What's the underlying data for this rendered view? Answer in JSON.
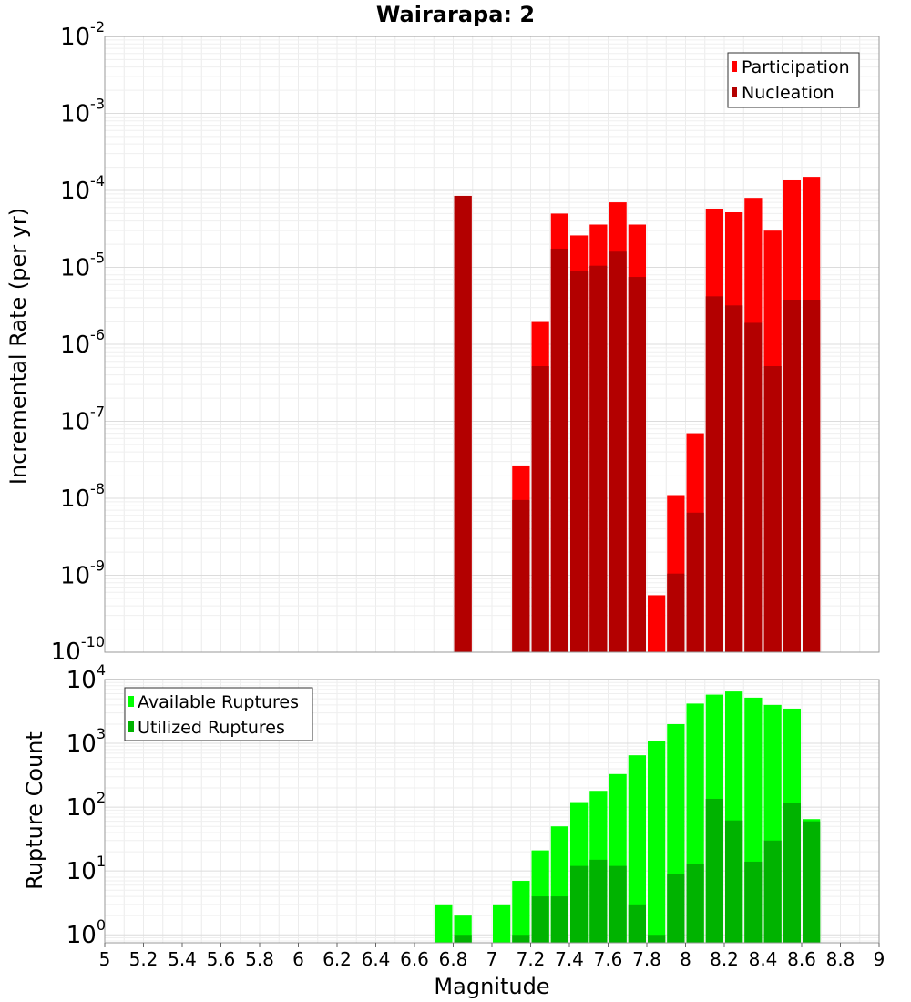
{
  "chart_data": [
    {
      "type": "bar",
      "title": "Wairarapa: 2",
      "ylabel": "Incremental Rate (per yr)",
      "yscale": "log",
      "ylim": [
        1e-10,
        0.01
      ],
      "xlim": [
        5,
        9
      ],
      "bar_width": 0.1,
      "legend_position": "top-right",
      "colors": {
        "participation": "#ff0000",
        "nucleation": "#b30000"
      },
      "x": [
        6.85,
        7.15,
        7.25,
        7.35,
        7.45,
        7.55,
        7.65,
        7.75,
        7.85,
        7.95,
        8.05,
        8.15,
        8.25,
        8.35,
        8.45,
        8.55,
        8.65
      ],
      "series": [
        {
          "name": "Participation",
          "values": [
            8.5e-05,
            2.6e-08,
            2e-06,
            5e-05,
            2.6e-05,
            3.6e-05,
            7e-05,
            3.6e-05,
            5.5e-10,
            1.1e-08,
            7e-08,
            5.8e-05,
            5.2e-05,
            8e-05,
            3e-05,
            0.000135,
            0.00015
          ]
        },
        {
          "name": "Nucleation",
          "values": [
            8.5e-05,
            9.5e-09,
            5.2e-07,
            1.75e-05,
            9e-06,
            1.05e-05,
            1.6e-05,
            7.5e-06,
            null,
            1.05e-09,
            6.5e-09,
            4.2e-06,
            3.2e-06,
            1.9e-06,
            5.2e-07,
            3.8e-06,
            3.8e-06
          ]
        }
      ],
      "yticks": [
        {
          "base": "10",
          "exp": "-10"
        },
        {
          "base": "10",
          "exp": "-9"
        },
        {
          "base": "10",
          "exp": "-8"
        },
        {
          "base": "10",
          "exp": "-7"
        },
        {
          "base": "10",
          "exp": "-6"
        },
        {
          "base": "10",
          "exp": "-5"
        },
        {
          "base": "10",
          "exp": "-4"
        },
        {
          "base": "10",
          "exp": "-3"
        },
        {
          "base": "10",
          "exp": "-2"
        }
      ]
    },
    {
      "type": "bar",
      "xlabel": "Magnitude",
      "ylabel": "Rupture Count",
      "yscale": "log",
      "ylim": [
        0.75,
        10000
      ],
      "xlim": [
        5,
        9
      ],
      "bar_width": 0.1,
      "legend_position": "top-left",
      "colors": {
        "available": "#00ff00",
        "utilized": "#00b300"
      },
      "x": [
        6.75,
        6.85,
        7.05,
        7.15,
        7.25,
        7.35,
        7.45,
        7.55,
        7.65,
        7.75,
        7.85,
        7.95,
        8.05,
        8.15,
        8.25,
        8.35,
        8.45,
        8.55,
        8.65
      ],
      "series": [
        {
          "name": "Available Ruptures",
          "values": [
            3,
            2,
            3,
            7,
            21,
            50,
            120,
            180,
            330,
            650,
            1100,
            2000,
            4200,
            5800,
            6500,
            5200,
            4000,
            3500,
            65
          ]
        },
        {
          "name": "Utilized Ruptures",
          "values": [
            null,
            1,
            null,
            1,
            4,
            4,
            12,
            15,
            12,
            3,
            1,
            9,
            13,
            135,
            62,
            14,
            30,
            115,
            60
          ]
        }
      ],
      "yticks": [
        {
          "value": 1,
          "base": "10",
          "exp": "0"
        },
        {
          "value": 10,
          "base": "10",
          "exp": "1"
        },
        {
          "value": 100,
          "base": "10",
          "exp": "2"
        },
        {
          "value": 1000,
          "base": "10",
          "exp": "3"
        },
        {
          "value": 10000,
          "base": "10",
          "exp": "4"
        }
      ],
      "xticks": [
        "5",
        "5.2",
        "5.4",
        "5.6",
        "5.8",
        "6",
        "6.2",
        "6.4",
        "6.6",
        "6.8",
        "7",
        "7.2",
        "7.4",
        "7.6",
        "7.8",
        "8",
        "8.2",
        "8.4",
        "8.6",
        "8.8",
        "9"
      ]
    }
  ]
}
